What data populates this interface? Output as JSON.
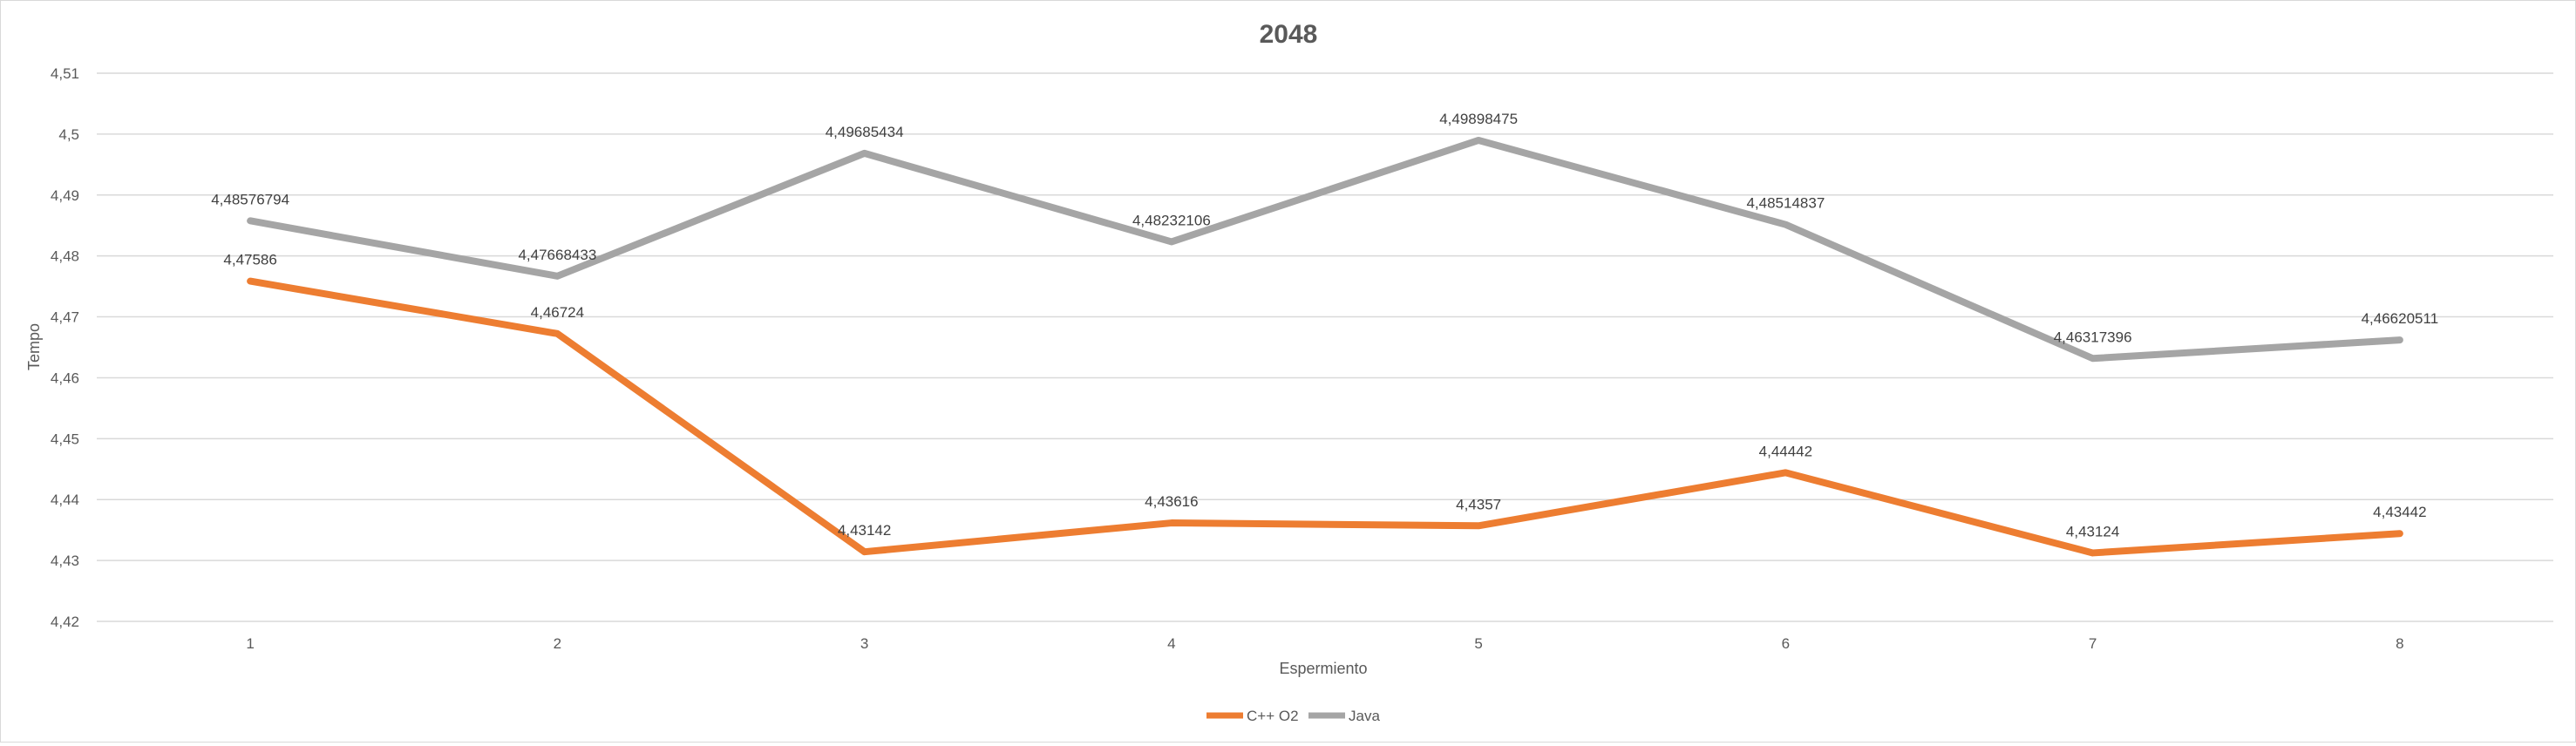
{
  "chart_data": {
    "type": "line",
    "title": "2048",
    "xlabel": "Espermiento",
    "ylabel": "Tempo",
    "categories": [
      "1",
      "2",
      "3",
      "4",
      "5",
      "6",
      "7",
      "8"
    ],
    "ylim": [
      4.42,
      4.51
    ],
    "yticks": [
      "4,42",
      "4,43",
      "4,44",
      "4,45",
      "4,46",
      "4,47",
      "4,48",
      "4,49",
      "4,5",
      "4,51"
    ],
    "grid": true,
    "legend_position": "bottom",
    "series": [
      {
        "name": "C++ O2",
        "color": "#ed7d31",
        "values": [
          4.47586,
          4.46724,
          4.43142,
          4.43616,
          4.4357,
          4.44442,
          4.43124,
          4.43442
        ],
        "labels": [
          "4,47586",
          "4,46724",
          "4,43142",
          "4,43616",
          "4,4357",
          "4,44442",
          "4,43124",
          "4,43442"
        ]
      },
      {
        "name": "Java",
        "color": "#a5a5a5",
        "values": [
          4.48576794,
          4.47668433,
          4.49685434,
          4.48232106,
          4.49898475,
          4.48514837,
          4.46317396,
          4.46620511
        ],
        "labels": [
          "4,48576794",
          "4,47668433",
          "4,49685434",
          "4,48232106",
          "4,49898475",
          "4,48514837",
          "4,46317396",
          "4,46620511"
        ]
      }
    ]
  }
}
